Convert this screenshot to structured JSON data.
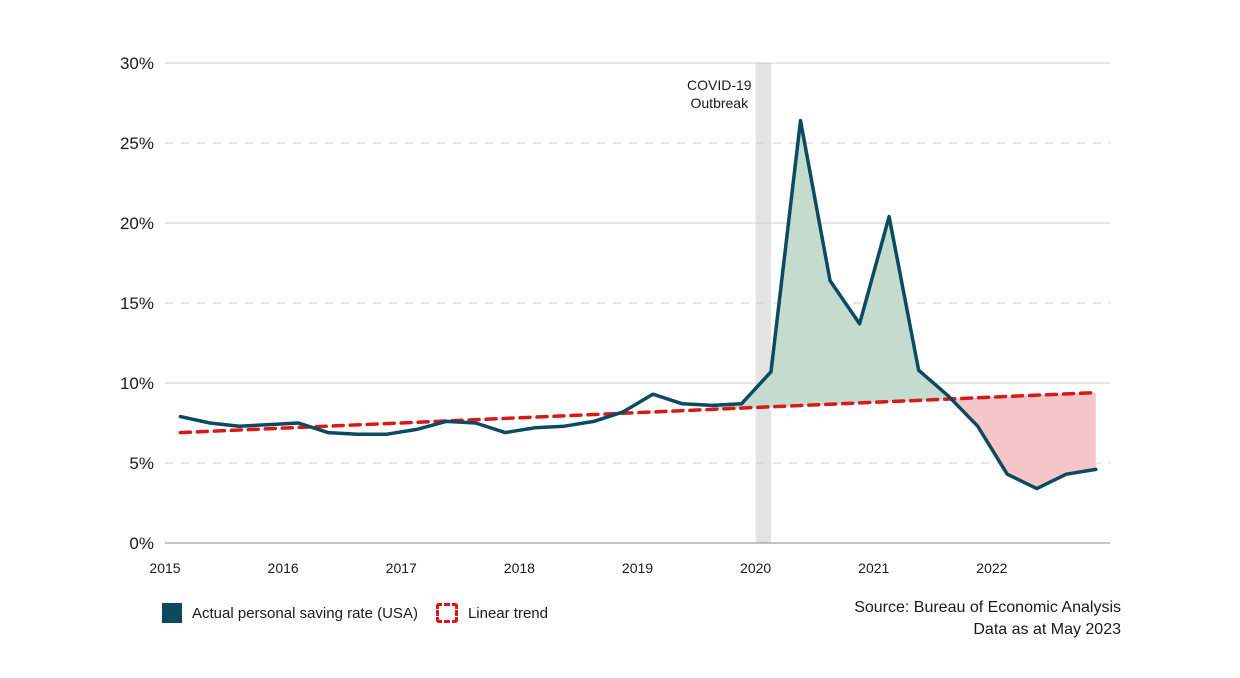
{
  "colors": {
    "actual_line": "#0d4a5f",
    "trend_line": "#d7191c",
    "above_fill": "#c3dccd",
    "below_fill": "#f5c6c8",
    "covid_band": "#e3e3e3",
    "grid": "#cfcfcf"
  },
  "legend": {
    "actual_label": "Actual personal saving rate (USA)",
    "trend_label": "Linear trend"
  },
  "source": {
    "line1": "Source: Bureau of Economic Analysis",
    "line2": "Data as at May 2023"
  },
  "chart_data": {
    "type": "line",
    "x_ticks": [
      "2015",
      "2016",
      "2017",
      "2018",
      "2019",
      "2020",
      "2021",
      "2022"
    ],
    "y_ticks": [
      "0%",
      "5%",
      "10%",
      "15%",
      "20%",
      "25%",
      "30%"
    ],
    "ylim": [
      0,
      30
    ],
    "xlim": [
      2015,
      2023
    ],
    "grid": true,
    "legend_position": "bottom-left",
    "annotation": {
      "line1": "COVID-19",
      "line2": "Outbreak",
      "x_start": 2020.0,
      "x_end": 2020.13
    },
    "series": [
      {
        "name": "Actual personal saving rate (USA)",
        "x": [
          2015.13,
          2015.38,
          2015.63,
          2015.88,
          2016.13,
          2016.38,
          2016.63,
          2016.88,
          2017.13,
          2017.38,
          2017.63,
          2017.88,
          2018.13,
          2018.38,
          2018.63,
          2018.88,
          2019.13,
          2019.38,
          2019.63,
          2019.88,
          2020.13,
          2020.38,
          2020.63,
          2020.88,
          2021.13,
          2021.38,
          2021.63,
          2021.88,
          2022.13,
          2022.38,
          2022.63,
          2022.88
        ],
        "values": [
          7.9,
          7.5,
          7.3,
          7.4,
          7.5,
          6.9,
          6.8,
          6.8,
          7.1,
          7.6,
          7.5,
          6.9,
          7.2,
          7.3,
          7.6,
          8.2,
          9.3,
          8.7,
          8.6,
          8.7,
          10.7,
          26.4,
          16.4,
          13.7,
          20.4,
          10.8,
          9.2,
          7.3,
          4.3,
          3.4,
          4.3,
          4.6
        ]
      },
      {
        "name": "Linear trend",
        "x": [
          2015.13,
          2022.88
        ],
        "values": [
          6.9,
          9.4
        ]
      }
    ]
  }
}
